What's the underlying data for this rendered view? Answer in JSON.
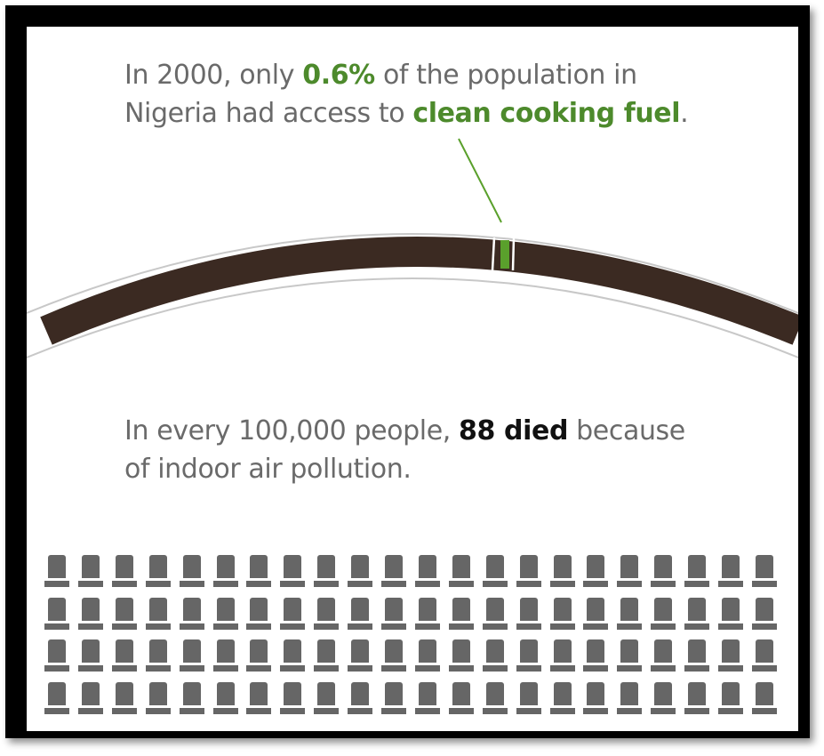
{
  "intro": {
    "prefix": "In 2000, only ",
    "percent": "0.6%",
    "mid": " of the  population in",
    "line2_prefix": "Nigeria had access to ",
    "highlight": "clean cooking fuel",
    "suffix": "."
  },
  "deaths": {
    "prefix": "In every 100,000 people, ",
    "highlight": "88 died",
    "suffix": " because",
    "line2": "of indoor air pollution."
  },
  "access_share_percent": 0.6,
  "grave_rows": 4,
  "graves_per_row": 22,
  "colors": {
    "background": "#ffffff",
    "frame": "#000000",
    "text": "#6a6a6a",
    "accent_green": "#4d8a2c",
    "marker_green": "#5aa02c",
    "arc": "#3b2a22",
    "grave": "#666666"
  },
  "icons": {
    "grave": "grave-icon"
  }
}
